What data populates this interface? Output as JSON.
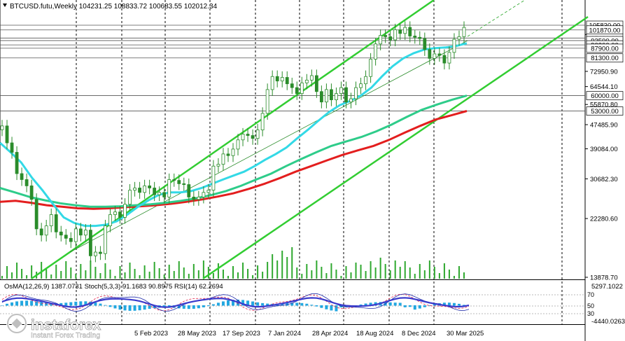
{
  "header": {
    "symbol_line": "BTCUSD.futu,Weekly  104231.25 108833.72 100683.55 102012.34"
  },
  "indicators_header": {
    "text": "OsMA(12,26,9) 1387.0731  Stoch(5,3,3) 91.1683 90.8975  RSI(14) 62.2694"
  },
  "logo": {
    "brand": "instaforex",
    "tagline": "Instant Forex Trading"
  },
  "colors": {
    "background": "#ffffff",
    "candle": "#2a8c2a",
    "volume": "#2fa82f",
    "channel": "#32cd32",
    "ma_fast": "#33d9e6",
    "ma_mid": "#2ecc8a",
    "ma_slow": "#e31e1e",
    "price_tag_bg": "#ffffff",
    "osma": "#22a7e0",
    "stoch_main": "#1e2aa8",
    "stoch_signal": "#e0204a",
    "rsi": "#3a3acc",
    "grid": "#000000"
  },
  "chart_data": {
    "type": "candlestick",
    "symbol": "BTCUSD.futu",
    "timeframe": "Weekly",
    "ohlc_last": {
      "open": 104231.25,
      "high": 108833.72,
      "low": 100683.55,
      "close": 102012.34
    },
    "x_tick_labels": [
      "5 Feb 2023",
      "28 May 2023",
      "17 Sep 2023",
      "7 Jan 2024",
      "28 Apr 2024",
      "18 Aug 2024",
      "8 Dec 2024",
      "30 Mar 2025"
    ],
    "y_tick_labels": [
      "98151.30",
      "72950.90",
      "64544.10",
      "55870.80",
      "47485.90",
      "39084.00",
      "30682.30",
      "22280.60",
      "13878.70"
    ],
    "price_levels": [
      "105830.00",
      "101870.00",
      "95430.00",
      "93500.00",
      "90300.00",
      "87900.00",
      "81300.00",
      "60000.00",
      "53000.00"
    ],
    "osma_scale": [
      "5297.1022",
      "-4440.0263"
    ],
    "oscillator_levels": [
      "70",
      "50",
      "30"
    ],
    "close_series": [
      47000,
      41000,
      38000,
      32000,
      30500,
      29000,
      26000,
      20500,
      19500,
      21000,
      23000,
      20000,
      19500,
      19000,
      18500,
      20500,
      19500,
      20300,
      16500,
      17000,
      16800,
      21000,
      23000,
      23500,
      22500,
      25000,
      28000,
      28500,
      27500,
      29000,
      28500,
      27000,
      27500,
      26500,
      30500,
      30300,
      29500,
      29300,
      26500,
      26000,
      26500,
      27500,
      28000,
      34000,
      34500,
      37500,
      37000,
      39000,
      42000,
      44000,
      43500,
      42500,
      45500,
      52000,
      63000,
      70000,
      67500,
      69500,
      66000,
      64000,
      61000,
      66500,
      68000,
      70500,
      62000,
      57000,
      63000,
      58000,
      61000,
      64000,
      57000,
      58500,
      64000,
      66000,
      70000,
      80500,
      91000,
      97500,
      96500,
      94000,
      102000,
      99000,
      104000,
      97000,
      96000,
      95000,
      87000,
      81000,
      84000,
      83000,
      78000,
      85000,
      94500,
      96500,
      104000
    ],
    "ma_fast_series": [
      41000,
      38000,
      35000,
      31000,
      28000,
      25000,
      22500,
      21500,
      21000,
      21000,
      21200,
      21800,
      23000,
      24500,
      25800,
      27000,
      27500,
      27500,
      27800,
      28500,
      29500,
      30500,
      31500,
      32500,
      34000,
      35800,
      37500,
      39500,
      42500,
      45500,
      49000,
      52500,
      55500,
      57500,
      60000,
      64000,
      70000,
      76000,
      81000,
      84500,
      87000,
      88000,
      88500,
      89500,
      91500
    ],
    "ma_mid_series": [
      28500,
      27500,
      26500,
      25800,
      25200,
      24800,
      24500,
      24500,
      24600,
      24800,
      25000,
      25300,
      25700,
      26200,
      26900,
      27800,
      29000,
      30500,
      32000,
      34000,
      36000,
      38000,
      40000,
      41500,
      43000,
      45000,
      47500,
      50500,
      53500,
      55800,
      58000,
      60000
    ],
    "ma_slow_series": [
      25500,
      25700,
      25300,
      24800,
      24500,
      24200,
      24100,
      24200,
      24400,
      24600,
      24800,
      25100,
      25500,
      26000,
      26600,
      27300,
      28300,
      29500,
      30900,
      32500,
      34000,
      35600,
      37200,
      38600,
      40000,
      42000,
      44500,
      47000,
      49500,
      51200,
      53000
    ]
  }
}
